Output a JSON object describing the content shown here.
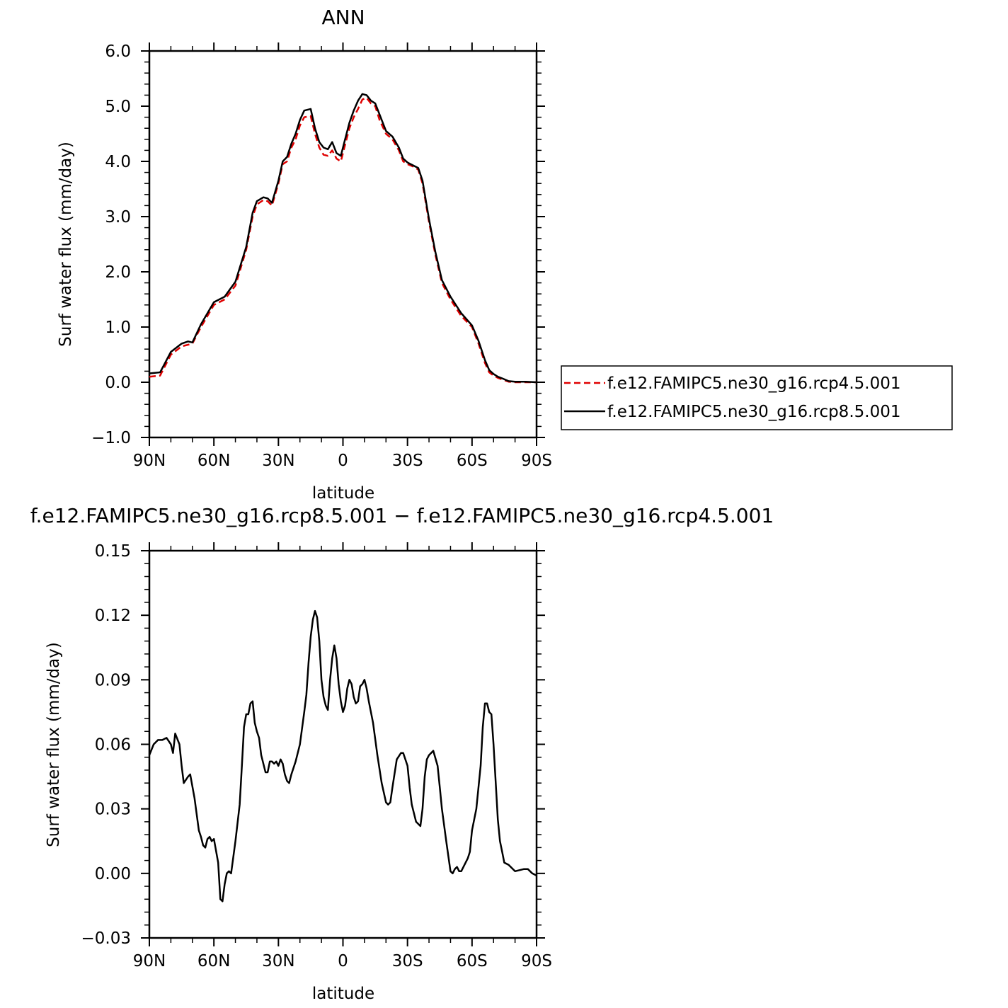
{
  "chart_data": [
    {
      "type": "line",
      "title": "ANN",
      "xlabel": "latitude",
      "ylabel": "Surf water flux (mm/day)",
      "xlim": [
        90,
        -90
      ],
      "ylim": [
        -1.0,
        6.0
      ],
      "x_ticks": [
        90,
        60,
        30,
        0,
        -30,
        -60,
        -90
      ],
      "x_tick_labels": [
        "90N",
        "60N",
        "30N",
        "0",
        "30S",
        "60S",
        "90S"
      ],
      "y_ticks": [
        -1,
        0,
        1,
        2,
        3,
        4,
        5,
        6
      ],
      "y_tick_labels": [
        "−1.0",
        "0.0",
        "1.0",
        "2.0",
        "3.0",
        "4.0",
        "5.0",
        "6.0"
      ],
      "legend_position": "right",
      "series": [
        {
          "name": "f.e12.FAMIPC5.ne30_g16.rcp4.5.001",
          "color": "#e00000",
          "dash": "dashed",
          "x": [
            90,
            85,
            80,
            75,
            72,
            70,
            66,
            60,
            55,
            50,
            45,
            42,
            40,
            37,
            35,
            33,
            30,
            28,
            26,
            24,
            22,
            20,
            18,
            15,
            13,
            11,
            9,
            7,
            5,
            3,
            1,
            -1,
            -3,
            -5,
            -7,
            -9,
            -11,
            -13,
            -15,
            -17,
            -20,
            -23,
            -26,
            -28,
            -30,
            -33,
            -35,
            -37,
            -40,
            -43,
            -46,
            -50,
            -55,
            -60,
            -63,
            -66,
            -68,
            -70,
            -72,
            -74,
            -77,
            -80,
            -85,
            -90
          ],
          "y": [
            0.1,
            0.12,
            0.5,
            0.65,
            0.68,
            0.7,
            1.0,
            1.4,
            1.5,
            1.75,
            2.4,
            3.0,
            3.22,
            3.3,
            3.28,
            3.2,
            3.6,
            3.95,
            4.0,
            4.25,
            4.4,
            4.65,
            4.8,
            4.82,
            4.5,
            4.25,
            4.12,
            4.1,
            4.2,
            4.05,
            4.0,
            4.3,
            4.6,
            4.8,
            4.95,
            5.12,
            5.15,
            5.05,
            5.0,
            4.75,
            4.5,
            4.4,
            4.2,
            4.0,
            3.95,
            3.9,
            3.85,
            3.6,
            2.9,
            2.3,
            1.8,
            1.5,
            1.2,
            1.0,
            0.7,
            0.35,
            0.18,
            0.12,
            0.08,
            0.05,
            0.01,
            0.0,
            0.0,
            0.0
          ]
        },
        {
          "name": "f.e12.FAMIPC5.ne30_g16.rcp8.5.001",
          "color": "#000000",
          "dash": "solid",
          "x": [
            90,
            85,
            80,
            75,
            72,
            70,
            66,
            60,
            55,
            50,
            45,
            42,
            40,
            37,
            35,
            33,
            30,
            28,
            26,
            24,
            22,
            20,
            18,
            15,
            13,
            11,
            9,
            7,
            5,
            3,
            1,
            -1,
            -3,
            -5,
            -7,
            -9,
            -11,
            -13,
            -15,
            -17,
            -20,
            -23,
            -26,
            -28,
            -30,
            -33,
            -35,
            -37,
            -40,
            -43,
            -46,
            -50,
            -55,
            -60,
            -63,
            -66,
            -68,
            -70,
            -72,
            -74,
            -77,
            -80,
            -85,
            -90
          ],
          "y": [
            0.16,
            0.18,
            0.55,
            0.7,
            0.74,
            0.72,
            1.05,
            1.45,
            1.55,
            1.82,
            2.45,
            3.07,
            3.28,
            3.35,
            3.33,
            3.25,
            3.65,
            4.0,
            4.08,
            4.32,
            4.5,
            4.75,
            4.92,
            4.95,
            4.6,
            4.35,
            4.25,
            4.22,
            4.35,
            4.15,
            4.1,
            4.4,
            4.7,
            4.92,
            5.1,
            5.22,
            5.2,
            5.1,
            5.05,
            4.85,
            4.55,
            4.45,
            4.25,
            4.05,
            3.98,
            3.92,
            3.88,
            3.65,
            2.95,
            2.35,
            1.85,
            1.55,
            1.25,
            1.03,
            0.75,
            0.4,
            0.22,
            0.15,
            0.1,
            0.07,
            0.02,
            0.01,
            0.01,
            0.0
          ]
        }
      ]
    },
    {
      "type": "line",
      "title": "f.e12.FAMIPC5.ne30_g16.rcp8.5.001 − f.e12.FAMIPC5.ne30_g16.rcp4.5.001",
      "xlabel": "latitude",
      "ylabel": "Surf water flux (mm/day)",
      "xlim": [
        90,
        -90
      ],
      "ylim": [
        -0.03,
        0.15
      ],
      "x_ticks": [
        90,
        60,
        30,
        0,
        -30,
        -60,
        -90
      ],
      "x_tick_labels": [
        "90N",
        "60N",
        "30N",
        "0",
        "30S",
        "60S",
        "90S"
      ],
      "y_ticks": [
        -0.03,
        0.0,
        0.03,
        0.06,
        0.09,
        0.12,
        0.15
      ],
      "y_tick_labels": [
        "−0.03",
        "0.00",
        "0.03",
        "0.06",
        "0.09",
        "0.12",
        "0.15"
      ],
      "series": [
        {
          "color": "#000000",
          "dash": "solid",
          "x": [
            90,
            88,
            86,
            84,
            82,
            80,
            79,
            78,
            76,
            75,
            74,
            72,
            71,
            69,
            67,
            66,
            65,
            64,
            63,
            62,
            61,
            60,
            58,
            57,
            56,
            55,
            54,
            53,
            52,
            50,
            48,
            47,
            46,
            45,
            44,
            43,
            42,
            41,
            40,
            39,
            38,
            36,
            35,
            34,
            33,
            32,
            31,
            30,
            29,
            28,
            27,
            26,
            25,
            24,
            22,
            20,
            18,
            17,
            16,
            15,
            14,
            13,
            12,
            11,
            10,
            9,
            8,
            7,
            6,
            5,
            4,
            3,
            2,
            1,
            0,
            -1,
            -2,
            -3,
            -4,
            -5,
            -6,
            -7,
            -8,
            -9,
            -10,
            -11,
            -12,
            -14,
            -16,
            -18,
            -20,
            -21,
            -22,
            -23,
            -25,
            -27,
            -28,
            -30,
            -31,
            -32,
            -34,
            -36,
            -37,
            -38,
            -39,
            -40,
            -42,
            -44,
            -45,
            -46,
            -48,
            -50,
            -51,
            -52,
            -53,
            -54,
            -55,
            -56,
            -58,
            -59,
            -60,
            -62,
            -64,
            -65,
            -66,
            -67,
            -68,
            -69,
            -70,
            -72,
            -73,
            -74,
            -75,
            -77,
            -80,
            -84,
            -86,
            -88,
            -90
          ],
          "y": [
            0.055,
            0.06,
            0.062,
            0.062,
            0.063,
            0.06,
            0.056,
            0.065,
            0.06,
            0.05,
            0.042,
            0.045,
            0.046,
            0.035,
            0.02,
            0.017,
            0.013,
            0.012,
            0.016,
            0.017,
            0.015,
            0.016,
            0.005,
            -0.012,
            -0.013,
            -0.005,
            0.0,
            0.001,
            0.0,
            0.015,
            0.032,
            0.05,
            0.068,
            0.074,
            0.074,
            0.079,
            0.08,
            0.07,
            0.066,
            0.063,
            0.055,
            0.047,
            0.047,
            0.052,
            0.052,
            0.051,
            0.052,
            0.05,
            0.053,
            0.051,
            0.046,
            0.043,
            0.042,
            0.046,
            0.052,
            0.06,
            0.075,
            0.083,
            0.098,
            0.11,
            0.118,
            0.122,
            0.119,
            0.108,
            0.09,
            0.082,
            0.078,
            0.076,
            0.09,
            0.1,
            0.106,
            0.1,
            0.088,
            0.08,
            0.075,
            0.078,
            0.086,
            0.09,
            0.088,
            0.082,
            0.079,
            0.08,
            0.087,
            0.088,
            0.09,
            0.086,
            0.08,
            0.07,
            0.055,
            0.042,
            0.033,
            0.032,
            0.033,
            0.04,
            0.053,
            0.056,
            0.056,
            0.05,
            0.04,
            0.032,
            0.024,
            0.022,
            0.03,
            0.045,
            0.053,
            0.055,
            0.057,
            0.05,
            0.04,
            0.03,
            0.015,
            0.001,
            0.0,
            0.002,
            0.003,
            0.001,
            0.001,
            0.003,
            0.007,
            0.01,
            0.02,
            0.03,
            0.05,
            0.068,
            0.079,
            0.079,
            0.075,
            0.074,
            0.06,
            0.025,
            0.015,
            0.01,
            0.005,
            0.004,
            0.001,
            0.002,
            0.002,
            0.0,
            -0.001
          ]
        }
      ]
    }
  ]
}
